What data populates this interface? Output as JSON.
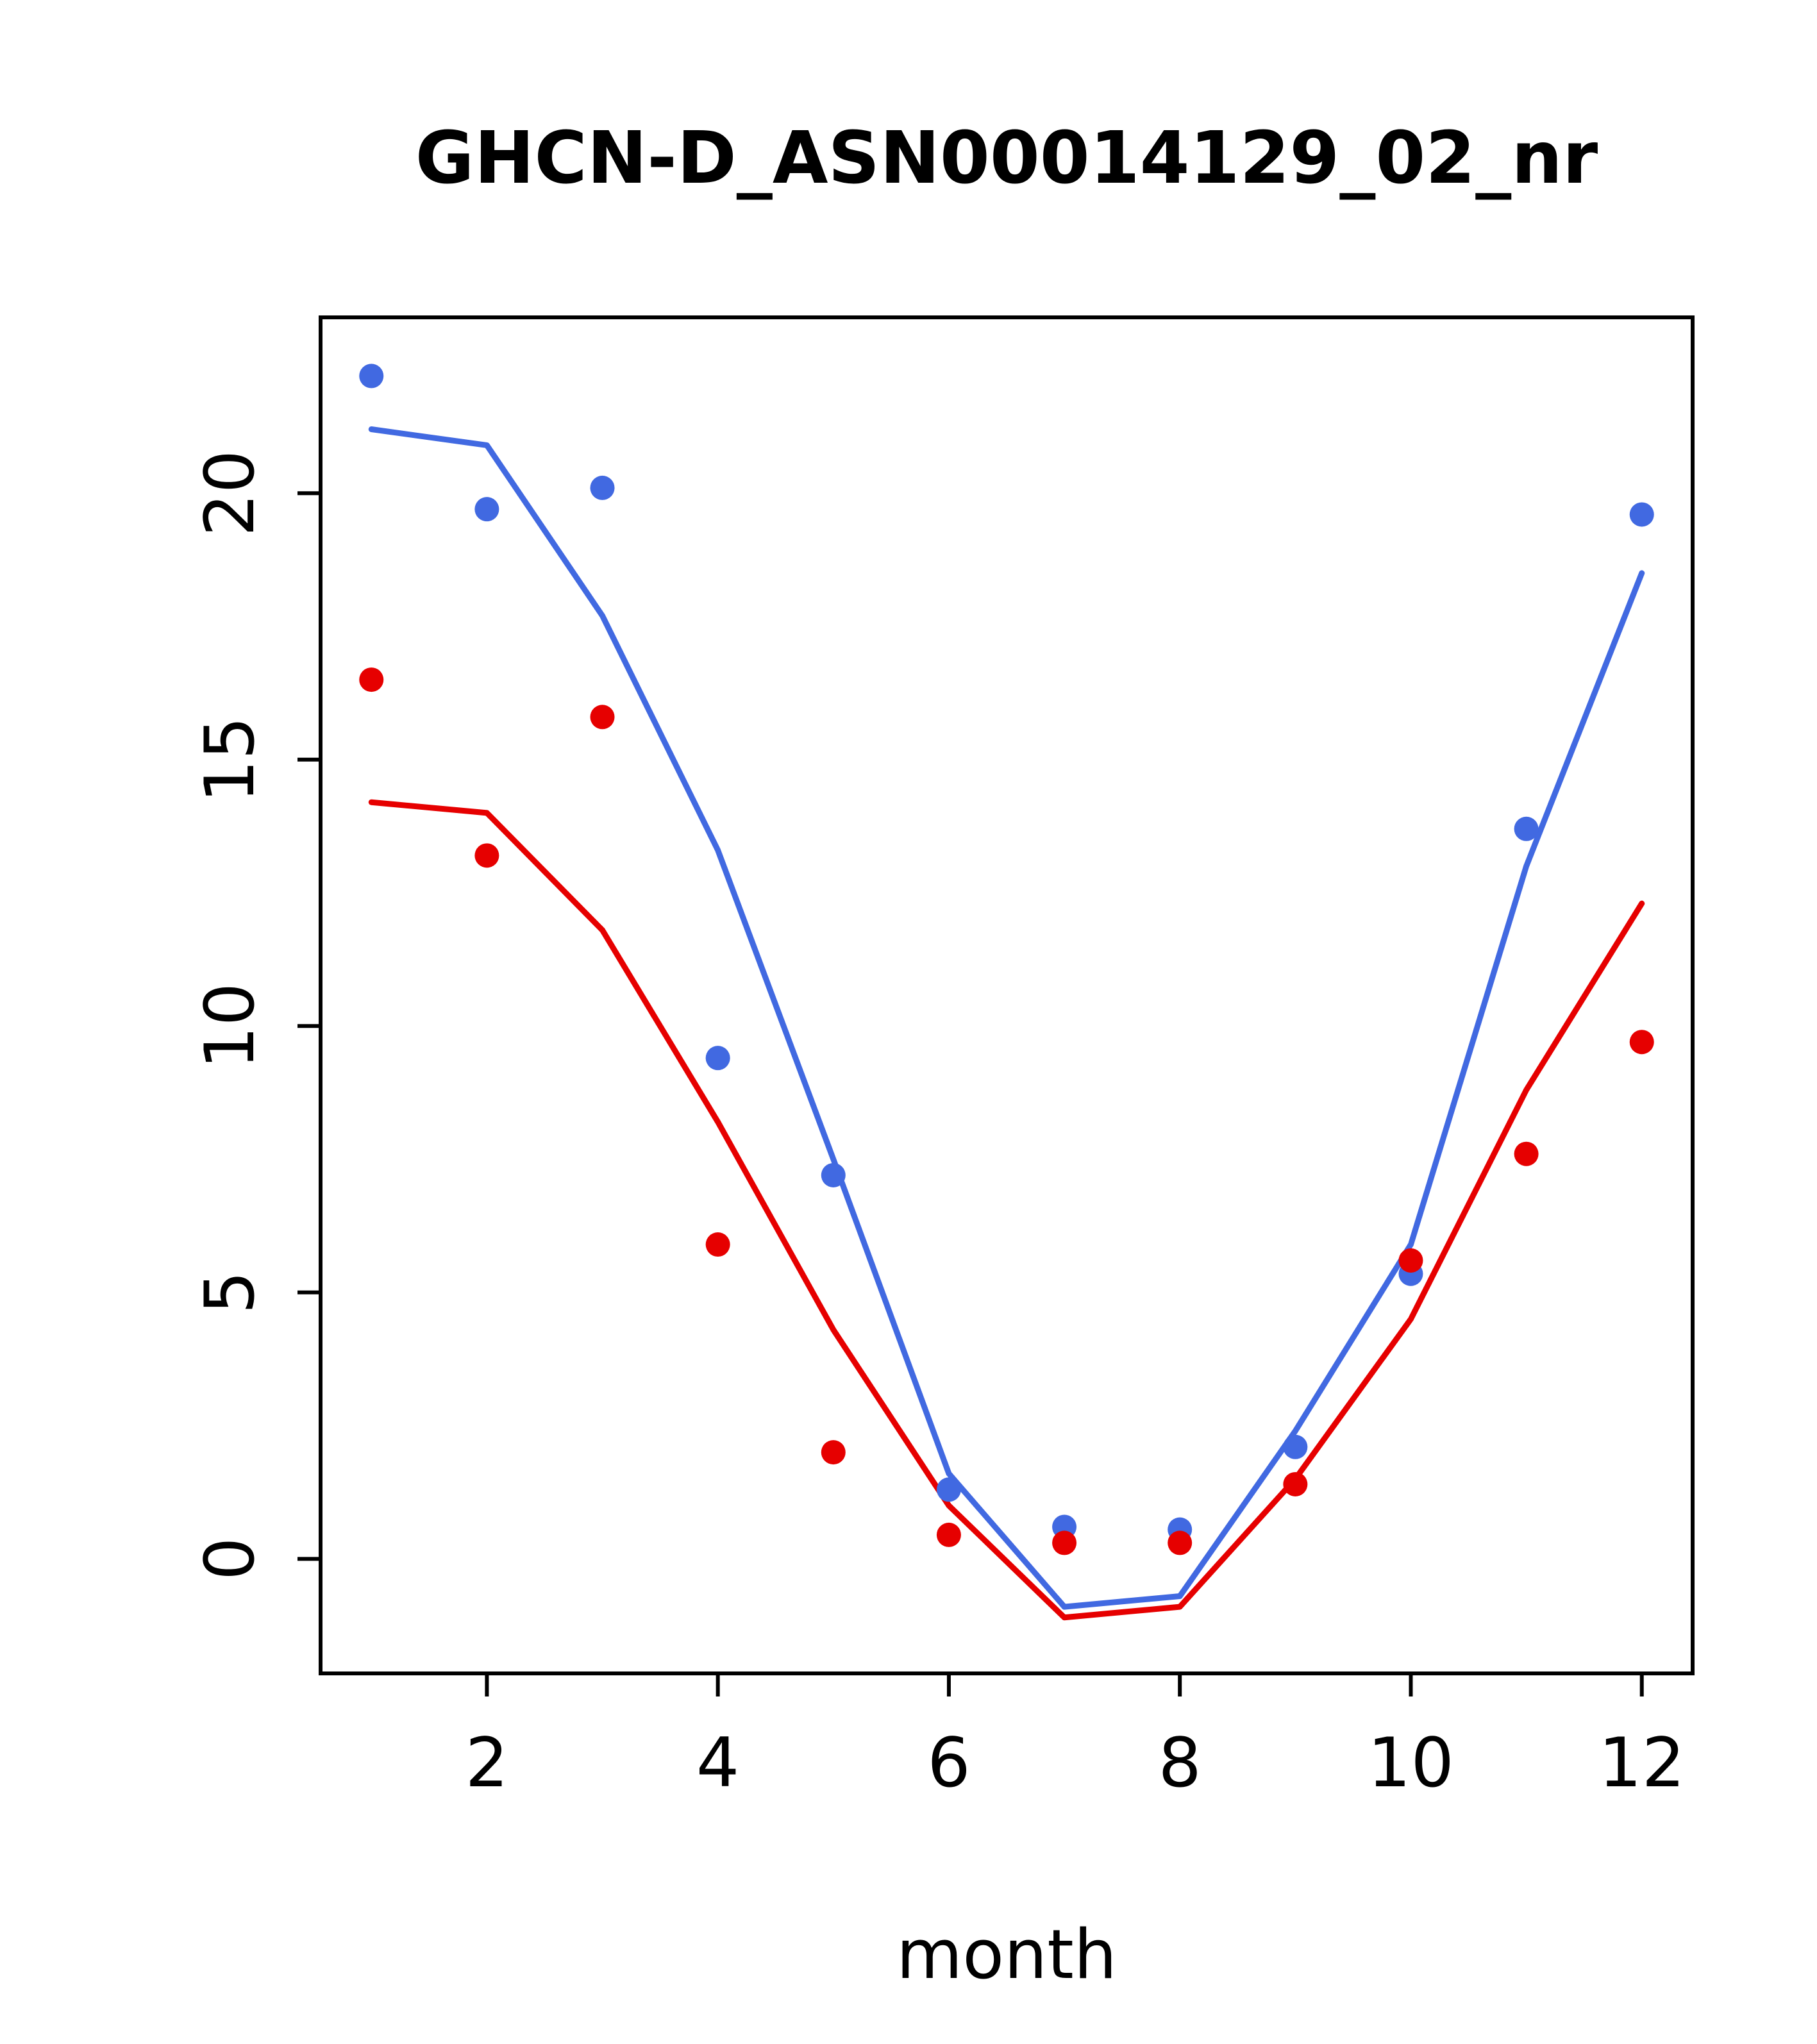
{
  "chart_data": {
    "type": "line",
    "title": "GHCN-D_ASN00014129_02_nr",
    "xlabel": "month",
    "ylabel": "",
    "x": [
      1,
      2,
      3,
      4,
      5,
      6,
      7,
      8,
      9,
      10,
      11,
      12
    ],
    "xticks": [
      2,
      4,
      6,
      8,
      10,
      12
    ],
    "yticks": [
      0,
      5,
      10,
      15,
      20
    ],
    "xlim": [
      0.56,
      12.44
    ],
    "ylim": [
      -2.15,
      23.3
    ],
    "grid": false,
    "legend": "none",
    "frame_color": "#000000",
    "series": [
      {
        "name": "blue-fit-line",
        "kind": "line",
        "color": "#4169E1",
        "values": [
          21.2,
          20.9,
          17.7,
          13.3,
          7.5,
          1.6,
          -0.9,
          -0.7,
          2.4,
          5.9,
          13.0,
          18.5
        ]
      },
      {
        "name": "red-fit-line",
        "kind": "line",
        "color": "#E60000",
        "values": [
          14.2,
          14.0,
          11.8,
          8.2,
          4.3,
          1.0,
          -1.1,
          -0.9,
          1.5,
          4.5,
          8.8,
          12.3
        ]
      },
      {
        "name": "blue-points",
        "kind": "points",
        "color": "#4169E1",
        "values": [
          22.2,
          19.7,
          20.1,
          9.4,
          7.2,
          1.3,
          0.6,
          0.55,
          2.1,
          5.35,
          13.7,
          19.6
        ]
      },
      {
        "name": "red-points",
        "kind": "points",
        "color": "#E60000",
        "values": [
          16.5,
          13.2,
          15.8,
          5.9,
          2.0,
          0.45,
          0.3,
          0.3,
          1.4,
          5.6,
          7.6,
          9.7
        ]
      }
    ]
  }
}
